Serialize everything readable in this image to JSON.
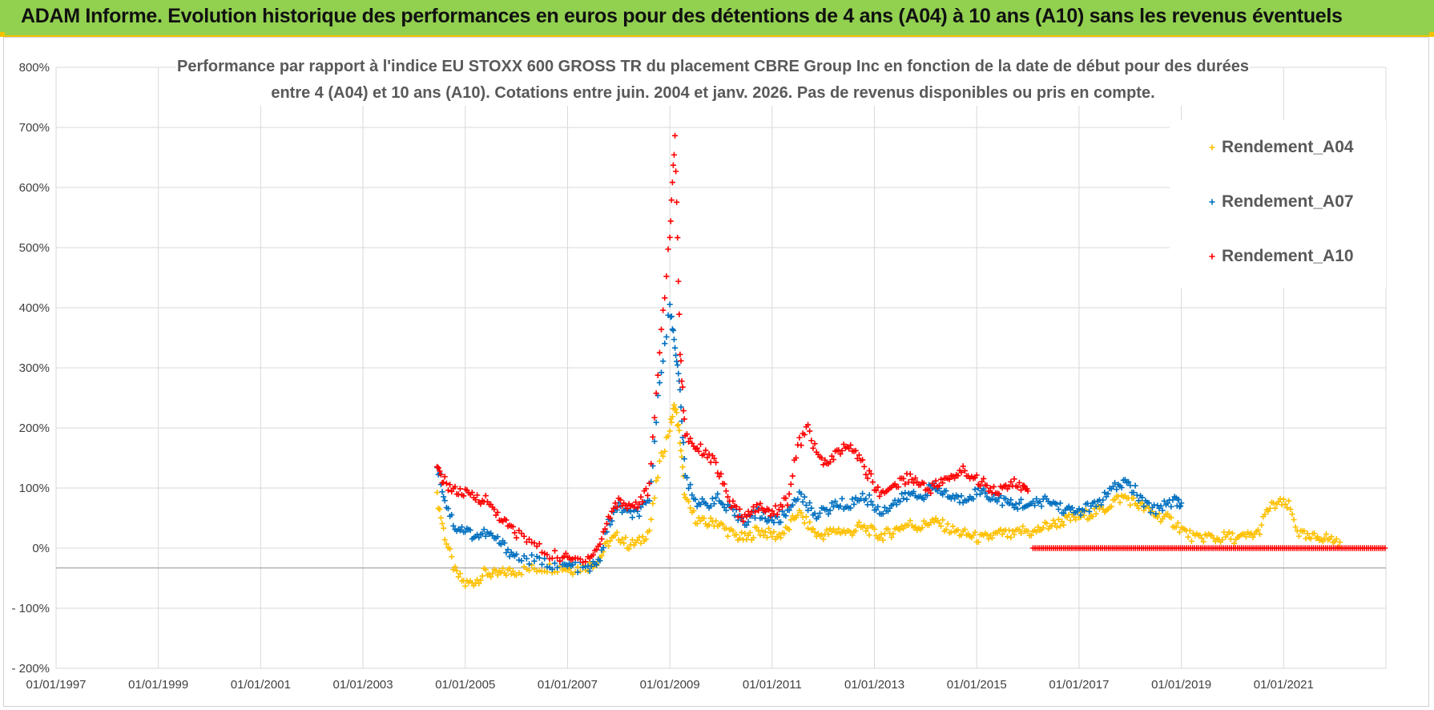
{
  "header": {
    "title": "ADAM Informe. Evolution historique des performances en euros pour des détentions de 4 ans (A04) à 10 ans (A10) sans les revenus éventuels"
  },
  "chart_data": {
    "type": "scatter",
    "title_lines": [
      "Performance par rapport à l'indice EU STOXX 600 GROSS TR  du placement CBRE Group Inc en fonction de la date de début pour des durées",
      "entre 4 (A04) et 10 ans (A10).  Cotations entre juin. 2004 et janv. 2026. Pas de revenus disponibles ou pris en compte."
    ],
    "xlabel": "",
    "ylabel": "",
    "xlim": [
      1997.0,
      2023.0
    ],
    "ylim": [
      -200,
      800
    ],
    "y_ticks": [
      "800%",
      "700%",
      "600%",
      "500%",
      "400%",
      "300%",
      "200%",
      "100%",
      "0%",
      "- 100%",
      "- 200%"
    ],
    "y_tick_values": [
      800,
      700,
      600,
      500,
      400,
      300,
      200,
      100,
      0,
      -100,
      -200
    ],
    "x_ticks": [
      "01/01/1997",
      "01/01/1999",
      "01/01/2001",
      "01/01/2003",
      "01/01/2005",
      "01/01/2007",
      "01/01/2009",
      "01/01/2011",
      "01/01/2013",
      "01/01/2015",
      "01/01/2017",
      "01/01/2019",
      "01/01/2021"
    ],
    "x_tick_values": [
      1997,
      1999,
      2001,
      2003,
      2005,
      2007,
      2009,
      2011,
      2013,
      2015,
      2017,
      2019,
      2021
    ],
    "legend_position": "top-right",
    "series": [
      {
        "name": "Rendement_A04",
        "color": "#ffc000",
        "points": [
          [
            2004.45,
            85
          ],
          [
            2004.6,
            20
          ],
          [
            2004.8,
            -40
          ],
          [
            2005.0,
            -60
          ],
          [
            2005.2,
            -55
          ],
          [
            2005.4,
            -40
          ],
          [
            2005.6,
            -45
          ],
          [
            2005.8,
            -40
          ],
          [
            2006.0,
            -38
          ],
          [
            2006.3,
            -35
          ],
          [
            2006.6,
            -32
          ],
          [
            2006.9,
            -32
          ],
          [
            2007.1,
            -35
          ],
          [
            2007.4,
            -30
          ],
          [
            2007.6,
            -20
          ],
          [
            2007.8,
            10
          ],
          [
            2008.0,
            20
          ],
          [
            2008.2,
            5
          ],
          [
            2008.4,
            10
          ],
          [
            2008.6,
            30
          ],
          [
            2008.8,
            140
          ],
          [
            2009.0,
            200
          ],
          [
            2009.1,
            240
          ],
          [
            2009.2,
            180
          ],
          [
            2009.3,
            80
          ],
          [
            2009.5,
            50
          ],
          [
            2009.7,
            40
          ],
          [
            2009.9,
            45
          ],
          [
            2010.1,
            30
          ],
          [
            2010.3,
            20
          ],
          [
            2010.5,
            15
          ],
          [
            2010.7,
            30
          ],
          [
            2010.9,
            25
          ],
          [
            2011.1,
            20
          ],
          [
            2011.3,
            30
          ],
          [
            2011.5,
            60
          ],
          [
            2011.7,
            40
          ],
          [
            2011.9,
            20
          ],
          [
            2012.1,
            25
          ],
          [
            2012.3,
            30
          ],
          [
            2012.5,
            25
          ],
          [
            2012.7,
            35
          ],
          [
            2012.9,
            30
          ],
          [
            2013.1,
            20
          ],
          [
            2013.3,
            25
          ],
          [
            2013.5,
            35
          ],
          [
            2013.7,
            40
          ],
          [
            2013.9,
            35
          ],
          [
            2014.1,
            45
          ],
          [
            2014.3,
            40
          ],
          [
            2014.5,
            30
          ],
          [
            2014.7,
            25
          ],
          [
            2014.9,
            20
          ],
          [
            2015.1,
            15
          ],
          [
            2015.3,
            20
          ],
          [
            2015.5,
            25
          ],
          [
            2015.7,
            20
          ],
          [
            2015.9,
            30
          ],
          [
            2016.1,
            25
          ],
          [
            2016.3,
            35
          ],
          [
            2016.5,
            40
          ],
          [
            2016.7,
            45
          ],
          [
            2016.9,
            50
          ],
          [
            2017.1,
            55
          ],
          [
            2017.3,
            60
          ],
          [
            2017.5,
            65
          ],
          [
            2017.7,
            80
          ],
          [
            2017.9,
            85
          ],
          [
            2018.1,
            75
          ],
          [
            2018.3,
            65
          ],
          [
            2018.5,
            55
          ],
          [
            2018.7,
            50
          ],
          [
            2018.9,
            40
          ],
          [
            2019.1,
            25
          ],
          [
            2019.3,
            15
          ],
          [
            2019.5,
            20
          ],
          [
            2019.7,
            15
          ],
          [
            2019.9,
            20
          ],
          [
            2020.1,
            15
          ],
          [
            2020.3,
            20
          ],
          [
            2020.5,
            25
          ],
          [
            2020.7,
            65
          ],
          [
            2020.9,
            75
          ],
          [
            2021.1,
            70
          ],
          [
            2021.3,
            25
          ],
          [
            2021.5,
            15
          ],
          [
            2021.7,
            20
          ],
          [
            2021.9,
            15
          ],
          [
            2022.1,
            10
          ]
        ]
      },
      {
        "name": "Rendement_A07",
        "color": "#0070c0",
        "points": [
          [
            2004.45,
            140
          ],
          [
            2004.6,
            80
          ],
          [
            2004.8,
            35
          ],
          [
            2005.0,
            30
          ],
          [
            2005.2,
            20
          ],
          [
            2005.4,
            25
          ],
          [
            2005.6,
            15
          ],
          [
            2005.8,
            0
          ],
          [
            2006.0,
            -15
          ],
          [
            2006.3,
            -20
          ],
          [
            2006.6,
            -25
          ],
          [
            2006.9,
            -30
          ],
          [
            2007.1,
            -30
          ],
          [
            2007.4,
            -35
          ],
          [
            2007.6,
            -25
          ],
          [
            2007.8,
            40
          ],
          [
            2008.0,
            70
          ],
          [
            2008.2,
            55
          ],
          [
            2008.4,
            60
          ],
          [
            2008.6,
            75
          ],
          [
            2008.8,
            280
          ],
          [
            2009.0,
            400
          ],
          [
            2009.1,
            340
          ],
          [
            2009.2,
            260
          ],
          [
            2009.3,
            120
          ],
          [
            2009.5,
            80
          ],
          [
            2009.7,
            70
          ],
          [
            2009.9,
            85
          ],
          [
            2010.1,
            65
          ],
          [
            2010.3,
            55
          ],
          [
            2010.5,
            45
          ],
          [
            2010.7,
            60
          ],
          [
            2010.9,
            50
          ],
          [
            2011.1,
            45
          ],
          [
            2011.3,
            60
          ],
          [
            2011.5,
            90
          ],
          [
            2011.7,
            70
          ],
          [
            2011.9,
            55
          ],
          [
            2012.1,
            65
          ],
          [
            2012.3,
            75
          ],
          [
            2012.5,
            70
          ],
          [
            2012.7,
            85
          ],
          [
            2012.9,
            80
          ],
          [
            2013.1,
            60
          ],
          [
            2013.3,
            70
          ],
          [
            2013.5,
            80
          ],
          [
            2013.7,
            90
          ],
          [
            2013.9,
            85
          ],
          [
            2014.1,
            100
          ],
          [
            2014.3,
            95
          ],
          [
            2014.5,
            85
          ],
          [
            2014.7,
            80
          ],
          [
            2014.9,
            90
          ],
          [
            2015.1,
            95
          ],
          [
            2015.3,
            85
          ],
          [
            2015.5,
            80
          ],
          [
            2015.7,
            70
          ],
          [
            2015.9,
            75
          ],
          [
            2016.1,
            70
          ],
          [
            2016.3,
            80
          ],
          [
            2016.5,
            75
          ],
          [
            2016.7,
            65
          ],
          [
            2016.9,
            60
          ],
          [
            2017.1,
            65
          ],
          [
            2017.3,
            70
          ],
          [
            2017.5,
            85
          ],
          [
            2017.7,
            100
          ],
          [
            2017.9,
            110
          ],
          [
            2018.1,
            95
          ],
          [
            2018.3,
            70
          ],
          [
            2018.5,
            65
          ],
          [
            2018.7,
            75
          ],
          [
            2018.9,
            80
          ],
          [
            2019.0,
            75
          ]
        ]
      },
      {
        "name": "Rendement_A10",
        "color": "#ff0000",
        "points": [
          [
            2004.45,
            130
          ],
          [
            2004.6,
            110
          ],
          [
            2004.8,
            95
          ],
          [
            2005.0,
            90
          ],
          [
            2005.2,
            85
          ],
          [
            2005.4,
            80
          ],
          [
            2005.6,
            60
          ],
          [
            2005.8,
            40
          ],
          [
            2006.0,
            25
          ],
          [
            2006.3,
            10
          ],
          [
            2006.6,
            -10
          ],
          [
            2006.9,
            -15
          ],
          [
            2007.1,
            -20
          ],
          [
            2007.4,
            -15
          ],
          [
            2007.6,
            0
          ],
          [
            2007.8,
            50
          ],
          [
            2008.0,
            80
          ],
          [
            2008.2,
            70
          ],
          [
            2008.4,
            75
          ],
          [
            2008.6,
            100
          ],
          [
            2008.8,
            330
          ],
          [
            2009.0,
            520
          ],
          [
            2009.1,
            690
          ],
          [
            2009.2,
            330
          ],
          [
            2009.3,
            190
          ],
          [
            2009.5,
            170
          ],
          [
            2009.7,
            160
          ],
          [
            2009.9,
            140
          ],
          [
            2010.1,
            90
          ],
          [
            2010.3,
            60
          ],
          [
            2010.5,
            50
          ],
          [
            2010.7,
            70
          ],
          [
            2010.9,
            60
          ],
          [
            2011.1,
            65
          ],
          [
            2011.3,
            80
          ],
          [
            2011.5,
            170
          ],
          [
            2011.7,
            200
          ],
          [
            2011.9,
            150
          ],
          [
            2012.1,
            140
          ],
          [
            2012.3,
            160
          ],
          [
            2012.5,
            170
          ],
          [
            2012.7,
            150
          ],
          [
            2012.9,
            120
          ],
          [
            2013.1,
            90
          ],
          [
            2013.3,
            100
          ],
          [
            2013.5,
            110
          ],
          [
            2013.7,
            120
          ],
          [
            2013.9,
            105
          ],
          [
            2014.1,
            100
          ],
          [
            2014.3,
            110
          ],
          [
            2014.5,
            115
          ],
          [
            2014.7,
            130
          ],
          [
            2014.9,
            120
          ],
          [
            2015.1,
            110
          ],
          [
            2015.3,
            100
          ],
          [
            2015.5,
            95
          ],
          [
            2015.7,
            110
          ],
          [
            2015.9,
            100
          ],
          [
            2016.0,
            95
          ]
        ],
        "flat_zero_from": 2016.1,
        "flat_zero_to": 2023.0
      }
    ]
  }
}
